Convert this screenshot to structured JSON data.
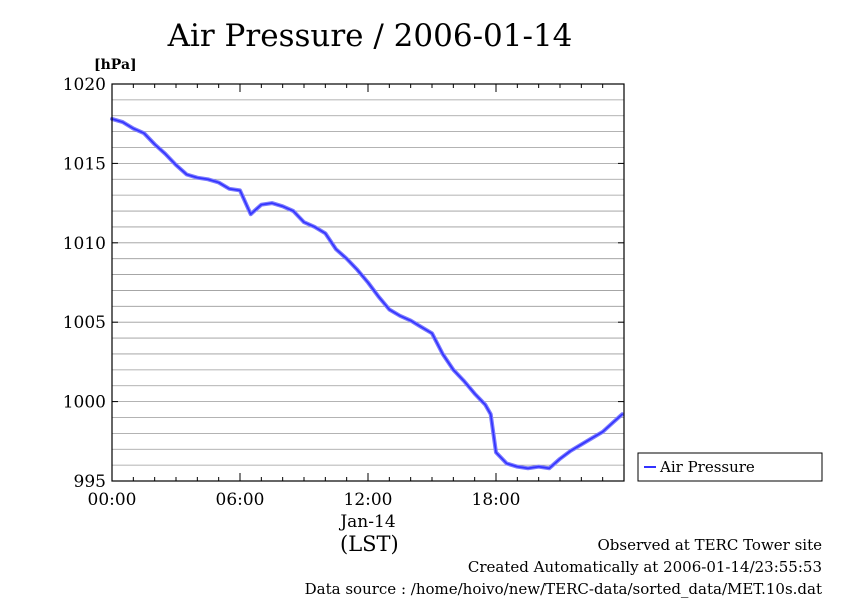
{
  "chart_data": {
    "type": "line",
    "title": "Air Pressure / 2006-01-14",
    "ylabel": "[hPa]",
    "xlabel": "(LST)",
    "date_label": "Jan-14",
    "ylim": [
      995,
      1020
    ],
    "xlim": [
      "00:00",
      "24:00"
    ],
    "yticks": [
      "995",
      "1000",
      "1005",
      "1010",
      "1015",
      "1020"
    ],
    "xticks": [
      "00:00",
      "06:00",
      "12:00",
      "18:00"
    ],
    "grid": true,
    "legend_position": "right",
    "series": [
      {
        "name": "Air Pressure",
        "color": "#3333ff",
        "x": [
          "00:00",
          "00:30",
          "01:00",
          "01:30",
          "02:00",
          "02:30",
          "03:00",
          "03:30",
          "04:00",
          "04:30",
          "05:00",
          "05:30",
          "06:00",
          "06:30",
          "07:00",
          "07:30",
          "08:00",
          "08:30",
          "09:00",
          "09:30",
          "10:00",
          "10:30",
          "11:00",
          "11:30",
          "12:00",
          "12:30",
          "13:00",
          "13:30",
          "14:00",
          "14:30",
          "15:00",
          "15:30",
          "16:00",
          "16:30",
          "17:00",
          "17:30",
          "17:45",
          "18:00",
          "18:30",
          "19:00",
          "19:30",
          "20:00",
          "20:30",
          "21:00",
          "21:30",
          "22:00",
          "22:30",
          "23:00",
          "23:30",
          "23:55"
        ],
        "values": [
          1017.8,
          1017.6,
          1017.2,
          1016.9,
          1016.2,
          1015.6,
          1014.9,
          1014.3,
          1014.1,
          1014.0,
          1013.8,
          1013.4,
          1013.3,
          1011.8,
          1012.4,
          1012.5,
          1012.3,
          1012.0,
          1011.3,
          1011.0,
          1010.6,
          1009.6,
          1009.0,
          1008.3,
          1007.5,
          1006.6,
          1005.8,
          1005.4,
          1005.1,
          1004.7,
          1004.3,
          1003.0,
          1002.0,
          1001.3,
          1000.5,
          999.8,
          999.2,
          996.8,
          996.1,
          995.9,
          995.8,
          995.9,
          995.8,
          996.4,
          996.9,
          997.3,
          997.7,
          998.1,
          998.7,
          999.2
        ]
      }
    ]
  },
  "footer": {
    "observed": "Observed at TERC Tower site",
    "created": "Created Automatically at 2006-01-14/23:55:53",
    "source": "Data source : /home/hoivo/new/TERC-data/sorted_data/MET.10s.dat"
  }
}
